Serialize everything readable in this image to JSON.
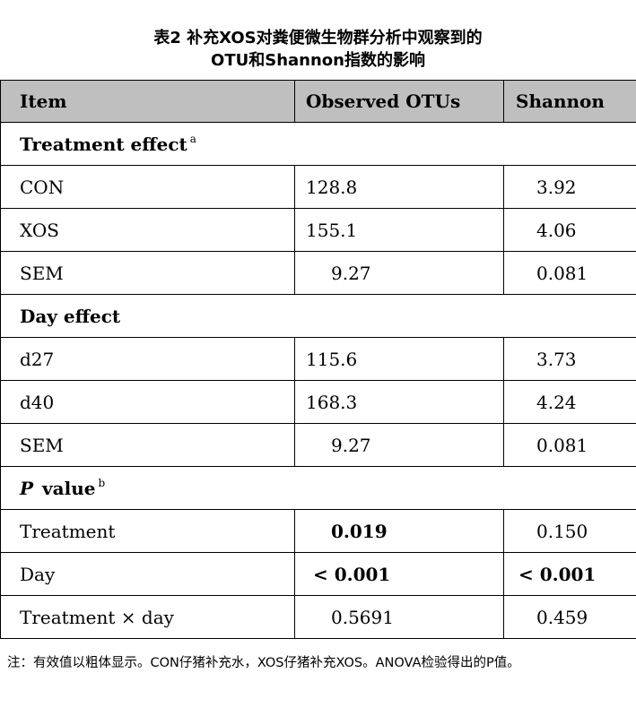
{
  "title": {
    "line1": "表2 补充XOS对粪便微生物群分析中观察到的",
    "line2": "OTU和Shannon指数的影响"
  },
  "table": {
    "headers": [
      "Item",
      "Observed OTUs",
      "Shannon"
    ],
    "sections": {
      "treatment": {
        "label": "Treatment effect",
        "sup": "a"
      },
      "day": {
        "label": "Day effect"
      },
      "pvalue": {
        "label_italic": "P",
        "label": "value",
        "sup": "b"
      }
    },
    "rows": {
      "con": [
        "CON",
        "128.8",
        "3.92"
      ],
      "xos": [
        "XOS",
        "155.1",
        "4.06"
      ],
      "sem1": [
        "SEM",
        "9.27",
        "0.081"
      ],
      "d27": [
        "d27",
        "115.6",
        "3.73"
      ],
      "d40": [
        "d40",
        "168.3",
        "4.24"
      ],
      "sem2": [
        "SEM",
        "9.27",
        "0.081"
      ],
      "treatment": [
        "Treatment",
        "0.019",
        "0.150"
      ],
      "day": [
        "Day",
        "< 0.001",
        "< 0.001"
      ],
      "interaction": [
        "Treatment × day",
        "0.5691",
        "0.459"
      ]
    }
  },
  "note": "注：有效值以粗体显示。CON仔猪补充水，XOS仔猪补充XOS。ANOVA检验得出的P值。"
}
